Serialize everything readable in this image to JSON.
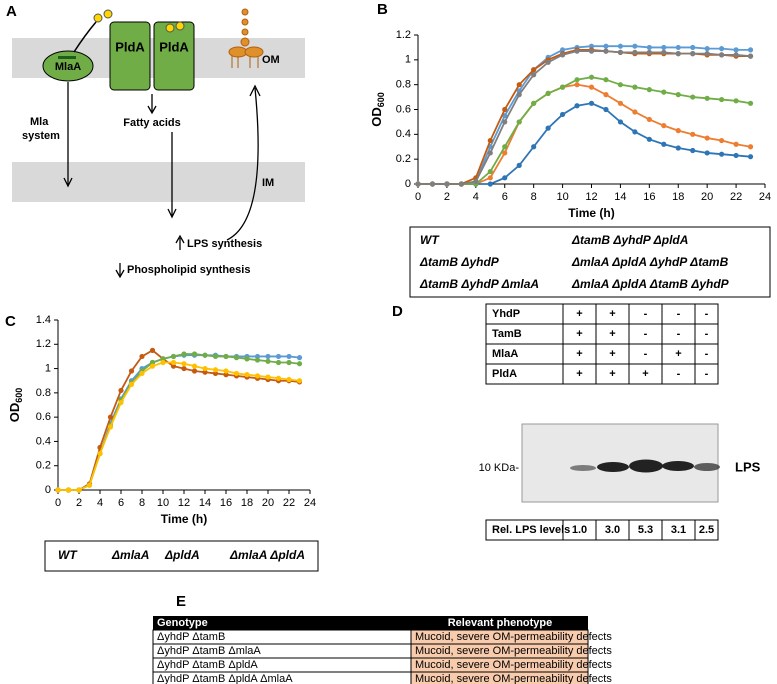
{
  "diagram": {
    "label": "A",
    "outer_membrane": "OM",
    "inner_membrane": "IM",
    "proteins": [
      "MlaA",
      "PldA",
      "PldA"
    ],
    "mla_system": [
      "Mla",
      "system"
    ],
    "fatty_acids": "Fatty acids",
    "lps_synthesis": "LPS synthesis",
    "phospholipid_synthesis": "Phospholipid synthesis"
  },
  "chart_data": [
    {
      "type": "line",
      "panel": "B",
      "xlabel": "Time (h)",
      "ylabel": "OD",
      "ylabel_subscript": "600",
      "x": [
        0,
        1,
        2,
        3,
        4,
        5,
        6,
        7,
        8,
        9,
        10,
        11,
        12,
        13,
        14,
        15,
        16,
        17,
        18,
        19,
        20,
        21,
        22,
        23
      ],
      "xlim": [
        0,
        24
      ],
      "xticks": [
        0,
        2,
        4,
        6,
        8,
        10,
        12,
        14,
        16,
        18,
        20,
        22,
        24
      ],
      "ylim": [
        0,
        1.2
      ],
      "yticks": [
        0,
        0.2,
        0.4,
        0.6,
        0.8,
        1,
        1.2
      ],
      "series": [
        {
          "name": "WT",
          "color": "#5b9bd5",
          "values": [
            0,
            0,
            0,
            0,
            0.02,
            0.3,
            0.55,
            0.75,
            0.92,
            1.02,
            1.08,
            1.1,
            1.11,
            1.11,
            1.11,
            1.11,
            1.1,
            1.1,
            1.1,
            1.1,
            1.09,
            1.09,
            1.08,
            1.08
          ]
        },
        {
          "name": "ΔtamB ΔyhdP",
          "color": "#ed7d31",
          "values": [
            0,
            0,
            0,
            0,
            0,
            0.05,
            0.25,
            0.5,
            0.65,
            0.73,
            0.78,
            0.8,
            0.78,
            0.72,
            0.65,
            0.58,
            0.52,
            0.47,
            0.43,
            0.4,
            0.37,
            0.35,
            0.32,
            0.3
          ]
        },
        {
          "name": "ΔtamB ΔyhdP ΔmlaA",
          "color": "#2e75b6",
          "values": [
            0,
            0,
            0,
            0,
            0,
            0,
            0.05,
            0.15,
            0.3,
            0.45,
            0.56,
            0.63,
            0.65,
            0.6,
            0.5,
            0.42,
            0.36,
            0.32,
            0.29,
            0.27,
            0.25,
            0.24,
            0.23,
            0.22
          ]
        },
        {
          "name": "ΔtamB ΔyhdP ΔpldA",
          "color": "#70ad47",
          "values": [
            0,
            0,
            0,
            0,
            0,
            0.1,
            0.3,
            0.5,
            0.65,
            0.73,
            0.78,
            0.84,
            0.86,
            0.84,
            0.8,
            0.78,
            0.76,
            0.74,
            0.72,
            0.7,
            0.69,
            0.68,
            0.67,
            0.65
          ]
        },
        {
          "name": "ΔmlaA ΔpldA ΔyhdP ΔtamB",
          "color": "#c55a11",
          "values": [
            0,
            0,
            0,
            0,
            0.05,
            0.35,
            0.6,
            0.8,
            0.92,
            1.0,
            1.05,
            1.08,
            1.08,
            1.07,
            1.06,
            1.05,
            1.05,
            1.05,
            1.05,
            1.05,
            1.04,
            1.04,
            1.03,
            1.03
          ]
        },
        {
          "name": "ΔmlaA ΔpldA ΔtamB ΔyhdP",
          "color": "#7f7f7f",
          "values": [
            0,
            0,
            0,
            0,
            0.02,
            0.25,
            0.5,
            0.72,
            0.88,
            0.98,
            1.04,
            1.07,
            1.07,
            1.07,
            1.06,
            1.06,
            1.06,
            1.06,
            1.05,
            1.05,
            1.05,
            1.04,
            1.04,
            1.03
          ]
        }
      ]
    },
    {
      "type": "line",
      "panel": "C",
      "xlabel": "Time (h)",
      "ylabel": "OD",
      "ylabel_subscript": "600",
      "x": [
        0,
        1,
        2,
        3,
        4,
        5,
        6,
        7,
        8,
        9,
        10,
        11,
        12,
        13,
        14,
        15,
        16,
        17,
        18,
        19,
        20,
        21,
        22,
        23
      ],
      "xlim": [
        0,
        24
      ],
      "xticks": [
        0,
        2,
        4,
        6,
        8,
        10,
        12,
        14,
        16,
        18,
        20,
        22,
        24
      ],
      "ylim": [
        0,
        1.4
      ],
      "yticks": [
        0,
        0.2,
        0.4,
        0.6,
        0.8,
        1,
        1.2,
        1.4
      ],
      "series": [
        {
          "name": "WT",
          "color": "#5b9bd5",
          "values": [
            0,
            0,
            0,
            0.05,
            0.3,
            0.55,
            0.75,
            0.9,
            1.0,
            1.05,
            1.08,
            1.1,
            1.11,
            1.11,
            1.11,
            1.11,
            1.1,
            1.1,
            1.1,
            1.1,
            1.1,
            1.1,
            1.1,
            1.09
          ]
        },
        {
          "name": "ΔmlaA",
          "color": "#c55a11",
          "values": [
            0,
            0,
            0,
            0.05,
            0.35,
            0.6,
            0.82,
            0.98,
            1.1,
            1.15,
            1.08,
            1.02,
            1.0,
            0.98,
            0.97,
            0.96,
            0.95,
            0.94,
            0.93,
            0.92,
            0.91,
            0.9,
            0.9,
            0.89
          ]
        },
        {
          "name": "ΔpldA",
          "color": "#70ad47",
          "values": [
            0,
            0,
            0,
            0.04,
            0.3,
            0.53,
            0.74,
            0.88,
            0.98,
            1.05,
            1.08,
            1.1,
            1.12,
            1.12,
            1.11,
            1.1,
            1.1,
            1.09,
            1.08,
            1.07,
            1.06,
            1.05,
            1.05,
            1.04
          ]
        },
        {
          "name": "ΔmlaA ΔpldA",
          "color": "#ffc000",
          "values": [
            0,
            0,
            0,
            0.04,
            0.3,
            0.52,
            0.72,
            0.87,
            0.96,
            1.02,
            1.05,
            1.05,
            1.04,
            1.02,
            1.0,
            0.99,
            0.98,
            0.96,
            0.95,
            0.94,
            0.93,
            0.92,
            0.91,
            0.9
          ]
        }
      ]
    }
  ],
  "blot": {
    "label": "D",
    "rows": [
      [
        "YhdP",
        "+",
        "+",
        "-",
        "-",
        "-"
      ],
      [
        "TamB",
        "+",
        "+",
        "-",
        "-",
        "-"
      ],
      [
        "MlaA",
        "+",
        "+",
        "-",
        "+",
        "-"
      ],
      [
        "PldA",
        "+",
        "+",
        "+",
        "-",
        "-"
      ]
    ],
    "marker": "10 KDa-",
    "band_label": "LPS",
    "levels": [
      "Rel. LPS levels",
      "1.0",
      "3.0",
      "5.3",
      "3.1",
      "2.5"
    ]
  },
  "table": {
    "label": "E",
    "header": [
      "Genotype",
      "Relevant phenotype"
    ],
    "rows": [
      [
        "ΔyhdP ΔtamB",
        "Mucoid, severe OM-permeability defects"
      ],
      [
        "ΔyhdP ΔtamB ΔmlaA",
        "Mucoid, severe OM-permeability defects"
      ],
      [
        "ΔyhdP ΔtamB ΔpldA",
        "Mucoid, severe OM-permeability defects"
      ],
      [
        "ΔyhdP ΔtamB ΔpldA ΔmlaA",
        "Mucoid, severe OM-permeability defects"
      ]
    ]
  }
}
